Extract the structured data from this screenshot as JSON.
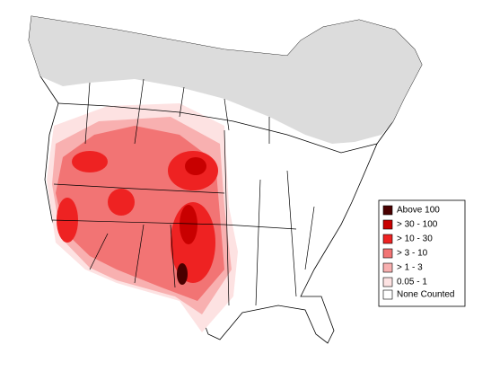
{
  "legend": {
    "items": [
      {
        "label": "Above 100",
        "color": "#4a0000"
      },
      {
        "label": "> 30 - 100",
        "color": "#c80000"
      },
      {
        "label": "> 10 - 30",
        "color": "#ee2222"
      },
      {
        "label": "> 3 - 10",
        "color": "#f27474"
      },
      {
        "label": "> 1 - 3",
        "color": "#f8b0b0"
      },
      {
        "label": "0.05 - 1",
        "color": "#fde2e2"
      },
      {
        "label": "None Counted",
        "color": "#ffffff"
      }
    ]
  }
}
